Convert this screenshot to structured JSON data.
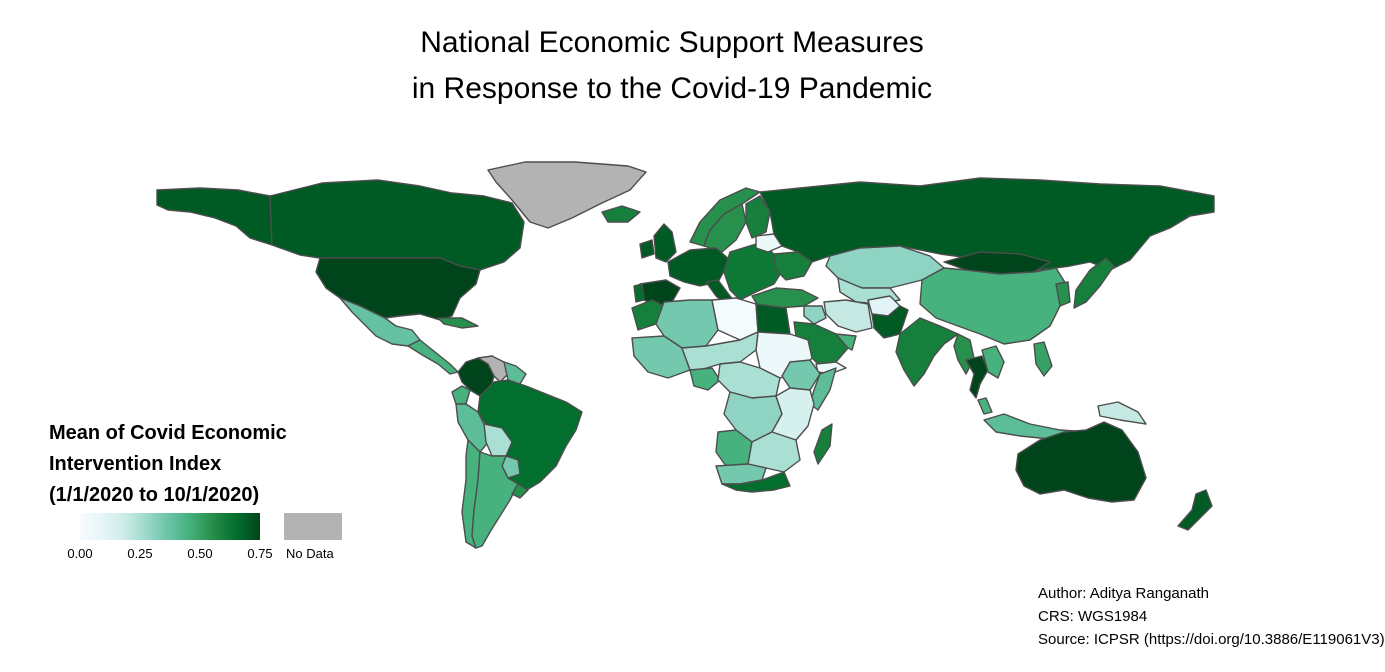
{
  "title": {
    "line1": "National Economic Support Measures",
    "line2": "in Response to the Covid-19 Pandemic"
  },
  "legend": {
    "title_line1": "Mean of Covid Economic",
    "title_line2": "Intervention Index",
    "title_line3": "(1/1/2020 to 10/1/2020)",
    "ticks": [
      "0.00",
      "0.25",
      "0.50",
      "0.75"
    ],
    "tick_values": [
      0,
      0.25,
      0.5,
      0.75
    ],
    "range": [
      0,
      0.75
    ],
    "no_data_label": "No Data",
    "colors": [
      "#f7fcfd",
      "#e5f5f9",
      "#ccece6",
      "#99d8c9",
      "#66c2a4",
      "#41ae76",
      "#238b45",
      "#006d2c",
      "#00441b"
    ],
    "no_data_color": "#b3b3b3"
  },
  "map": {
    "border_color": "#4d4d4d",
    "regions": [
      {
        "name": "Alaska",
        "value": 0.7
      },
      {
        "name": "Canada",
        "value": 0.7
      },
      {
        "name": "Greenland",
        "value": null
      },
      {
        "name": "United States",
        "value": 0.75
      },
      {
        "name": "Mexico",
        "value": 0.38
      },
      {
        "name": "Central America",
        "value": 0.45
      },
      {
        "name": "Caribbean",
        "value": 0.55
      },
      {
        "name": "Colombia",
        "value": 0.75
      },
      {
        "name": "Venezuela",
        "value": null
      },
      {
        "name": "Guyana Suriname",
        "value": 0.4
      },
      {
        "name": "Ecuador",
        "value": 0.45
      },
      {
        "name": "Peru",
        "value": 0.4
      },
      {
        "name": "Brazil",
        "value": 0.65
      },
      {
        "name": "Bolivia",
        "value": 0.25
      },
      {
        "name": "Paraguay",
        "value": 0.35
      },
      {
        "name": "Chile",
        "value": 0.45
      },
      {
        "name": "Argentina",
        "value": 0.45
      },
      {
        "name": "Uruguay",
        "value": 0.55
      },
      {
        "name": "Iceland",
        "value": 0.6
      },
      {
        "name": "United Kingdom",
        "value": 0.7
      },
      {
        "name": "Ireland",
        "value": 0.7
      },
      {
        "name": "Norway",
        "value": 0.55
      },
      {
        "name": "Sweden",
        "value": 0.55
      },
      {
        "name": "Finland",
        "value": 0.6
      },
      {
        "name": "Western Europe",
        "value": 0.7
      },
      {
        "name": "Spain",
        "value": 0.75
      },
      {
        "name": "Portugal",
        "value": 0.65
      },
      {
        "name": "Italy",
        "value": 0.7
      },
      {
        "name": "Eastern Europe",
        "value": 0.62
      },
      {
        "name": "Belarus",
        "value": 0.05
      },
      {
        "name": "Ukraine",
        "value": 0.6
      },
      {
        "name": "Turkey",
        "value": 0.55
      },
      {
        "name": "Russia",
        "value": 0.7
      },
      {
        "name": "Kazakhstan",
        "value": 0.3
      },
      {
        "name": "Mongolia",
        "value": 0.75
      },
      {
        "name": "China",
        "value": 0.45
      },
      {
        "name": "Central Asia",
        "value": 0.25
      },
      {
        "name": "Afghanistan",
        "value": 0.1
      },
      {
        "name": "Pakistan",
        "value": 0.7
      },
      {
        "name": "Iran",
        "value": 0.2
      },
      {
        "name": "Iraq",
        "value": 0.3
      },
      {
        "name": "Saudi Arabia",
        "value": 0.6
      },
      {
        "name": "Yemen",
        "value": 0.05
      },
      {
        "name": "Oman",
        "value": 0.45
      },
      {
        "name": "India",
        "value": 0.6
      },
      {
        "name": "Myanmar",
        "value": 0.55
      },
      {
        "name": "Thailand",
        "value": 0.75
      },
      {
        "name": "Indochina",
        "value": 0.45
      },
      {
        "name": "Malaysia",
        "value": 0.45
      },
      {
        "name": "Indonesia",
        "value": 0.4
      },
      {
        "name": "Philippines",
        "value": 0.5
      },
      {
        "name": "Korea",
        "value": 0.55
      },
      {
        "name": "Japan",
        "value": 0.6
      },
      {
        "name": "Papua New Guinea",
        "value": 0.2
      },
      {
        "name": "Australia",
        "value": 0.75
      },
      {
        "name": "New Zealand",
        "value": 0.7
      },
      {
        "name": "Morocco",
        "value": 0.6
      },
      {
        "name": "Algeria",
        "value": 0.35
      },
      {
        "name": "Libya",
        "value": 0.02
      },
      {
        "name": "Egypt",
        "value": 0.7
      },
      {
        "name": "Sudan",
        "value": 0.05
      },
      {
        "name": "West Africa",
        "value": 0.35
      },
      {
        "name": "Sahel",
        "value": 0.25
      },
      {
        "name": "Nigeria",
        "value": 0.45
      },
      {
        "name": "Ethiopia",
        "value": 0.35
      },
      {
        "name": "Somalia",
        "value": 0.4
      },
      {
        "name": "Central Africa",
        "value": 0.25
      },
      {
        "name": "DR Congo",
        "value": 0.3
      },
      {
        "name": "East Africa",
        "value": 0.15
      },
      {
        "name": "Angola",
        "value": 0.45
      },
      {
        "name": "Zambia Mozambique",
        "value": 0.25
      },
      {
        "name": "Namibia Botswana",
        "value": 0.35
      },
      {
        "name": "South Africa",
        "value": 0.65
      },
      {
        "name": "Madagascar",
        "value": 0.6
      }
    ]
  },
  "credits": {
    "author": "Author: Aditya Ranganath",
    "crs": "CRS: WGS1984",
    "source": "Source: ICPSR (https://doi.org/10.3886/E119061V3)"
  }
}
